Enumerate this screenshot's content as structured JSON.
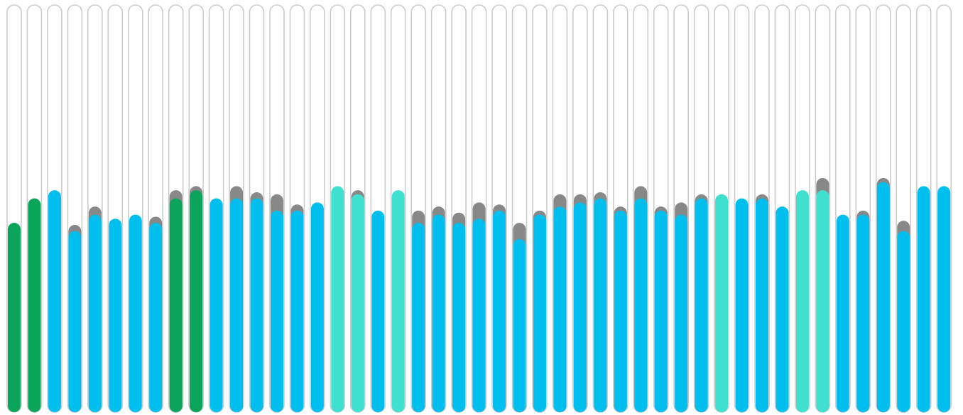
{
  "chart_data": {
    "type": "bar",
    "ylim": [
      0,
      100
    ],
    "grid": false,
    "legend": "none",
    "colors": {
      "green": "#0aa55a",
      "blue": "#00bfef",
      "teal": "#40e0d0",
      "gray": "#888888",
      "track_border": "#cccccc",
      "track_fill": "#ffffff"
    },
    "bars": [
      {
        "value": 46.5,
        "extra": 0,
        "color": "green"
      },
      {
        "value": 52.5,
        "extra": 0,
        "color": "green"
      },
      {
        "value": 54.5,
        "extra": 0,
        "color": "blue"
      },
      {
        "value": 44.5,
        "extra": 1.5,
        "color": "blue"
      },
      {
        "value": 48.5,
        "extra": 2,
        "color": "blue"
      },
      {
        "value": 47.5,
        "extra": 0,
        "color": "blue"
      },
      {
        "value": 48.5,
        "extra": 0,
        "color": "blue"
      },
      {
        "value": 46.5,
        "extra": 1.5,
        "color": "blue"
      },
      {
        "value": 52.5,
        "extra": 2,
        "color": "green"
      },
      {
        "value": 54.5,
        "extra": 1,
        "color": "green"
      },
      {
        "value": 52.5,
        "extra": 0,
        "color": "blue"
      },
      {
        "value": 52.5,
        "extra": 3,
        "color": "blue"
      },
      {
        "value": 52.5,
        "extra": 1.5,
        "color": "blue"
      },
      {
        "value": 49.5,
        "extra": 4,
        "color": "blue"
      },
      {
        "value": 49.5,
        "extra": 1.5,
        "color": "blue"
      },
      {
        "value": 51.5,
        "extra": 0,
        "color": "blue"
      },
      {
        "value": 55.5,
        "extra": 0,
        "color": "teal"
      },
      {
        "value": 53.5,
        "extra": 1,
        "color": "teal"
      },
      {
        "value": 49.5,
        "extra": 0,
        "color": "blue"
      },
      {
        "value": 54.5,
        "extra": 0,
        "color": "teal"
      },
      {
        "value": 46.5,
        "extra": 3,
        "color": "blue"
      },
      {
        "value": 48.5,
        "extra": 2,
        "color": "blue"
      },
      {
        "value": 46.5,
        "extra": 2.5,
        "color": "blue"
      },
      {
        "value": 47.5,
        "extra": 4,
        "color": "blue"
      },
      {
        "value": 49.5,
        "extra": 1.5,
        "color": "blue"
      },
      {
        "value": 42.5,
        "extra": 4,
        "color": "blue"
      },
      {
        "value": 48.5,
        "extra": 1,
        "color": "blue"
      },
      {
        "value": 50.5,
        "extra": 3,
        "color": "blue"
      },
      {
        "value": 51.5,
        "extra": 2,
        "color": "blue"
      },
      {
        "value": 52.5,
        "extra": 1.5,
        "color": "blue"
      },
      {
        "value": 49.5,
        "extra": 1,
        "color": "blue"
      },
      {
        "value": 52.5,
        "extra": 3,
        "color": "blue"
      },
      {
        "value": 49.5,
        "extra": 1,
        "color": "blue"
      },
      {
        "value": 48.5,
        "extra": 3,
        "color": "blue"
      },
      {
        "value": 52.5,
        "extra": 1,
        "color": "blue"
      },
      {
        "value": 53.5,
        "extra": 0,
        "color": "teal"
      },
      {
        "value": 52.5,
        "extra": 0,
        "color": "blue"
      },
      {
        "value": 52.5,
        "extra": 1,
        "color": "blue"
      },
      {
        "value": 50.5,
        "extra": 0,
        "color": "blue"
      },
      {
        "value": 54.5,
        "extra": 0,
        "color": "teal"
      },
      {
        "value": 54.5,
        "extra": 3,
        "color": "teal"
      },
      {
        "value": 48.5,
        "extra": 0,
        "color": "blue"
      },
      {
        "value": 48.5,
        "extra": 1,
        "color": "blue"
      },
      {
        "value": 56.5,
        "extra": 1,
        "color": "blue"
      },
      {
        "value": 44.5,
        "extra": 2.5,
        "color": "blue"
      },
      {
        "value": 55.5,
        "extra": 0,
        "color": "blue"
      },
      {
        "value": 55.5,
        "extra": 0,
        "color": "blue"
      }
    ]
  }
}
